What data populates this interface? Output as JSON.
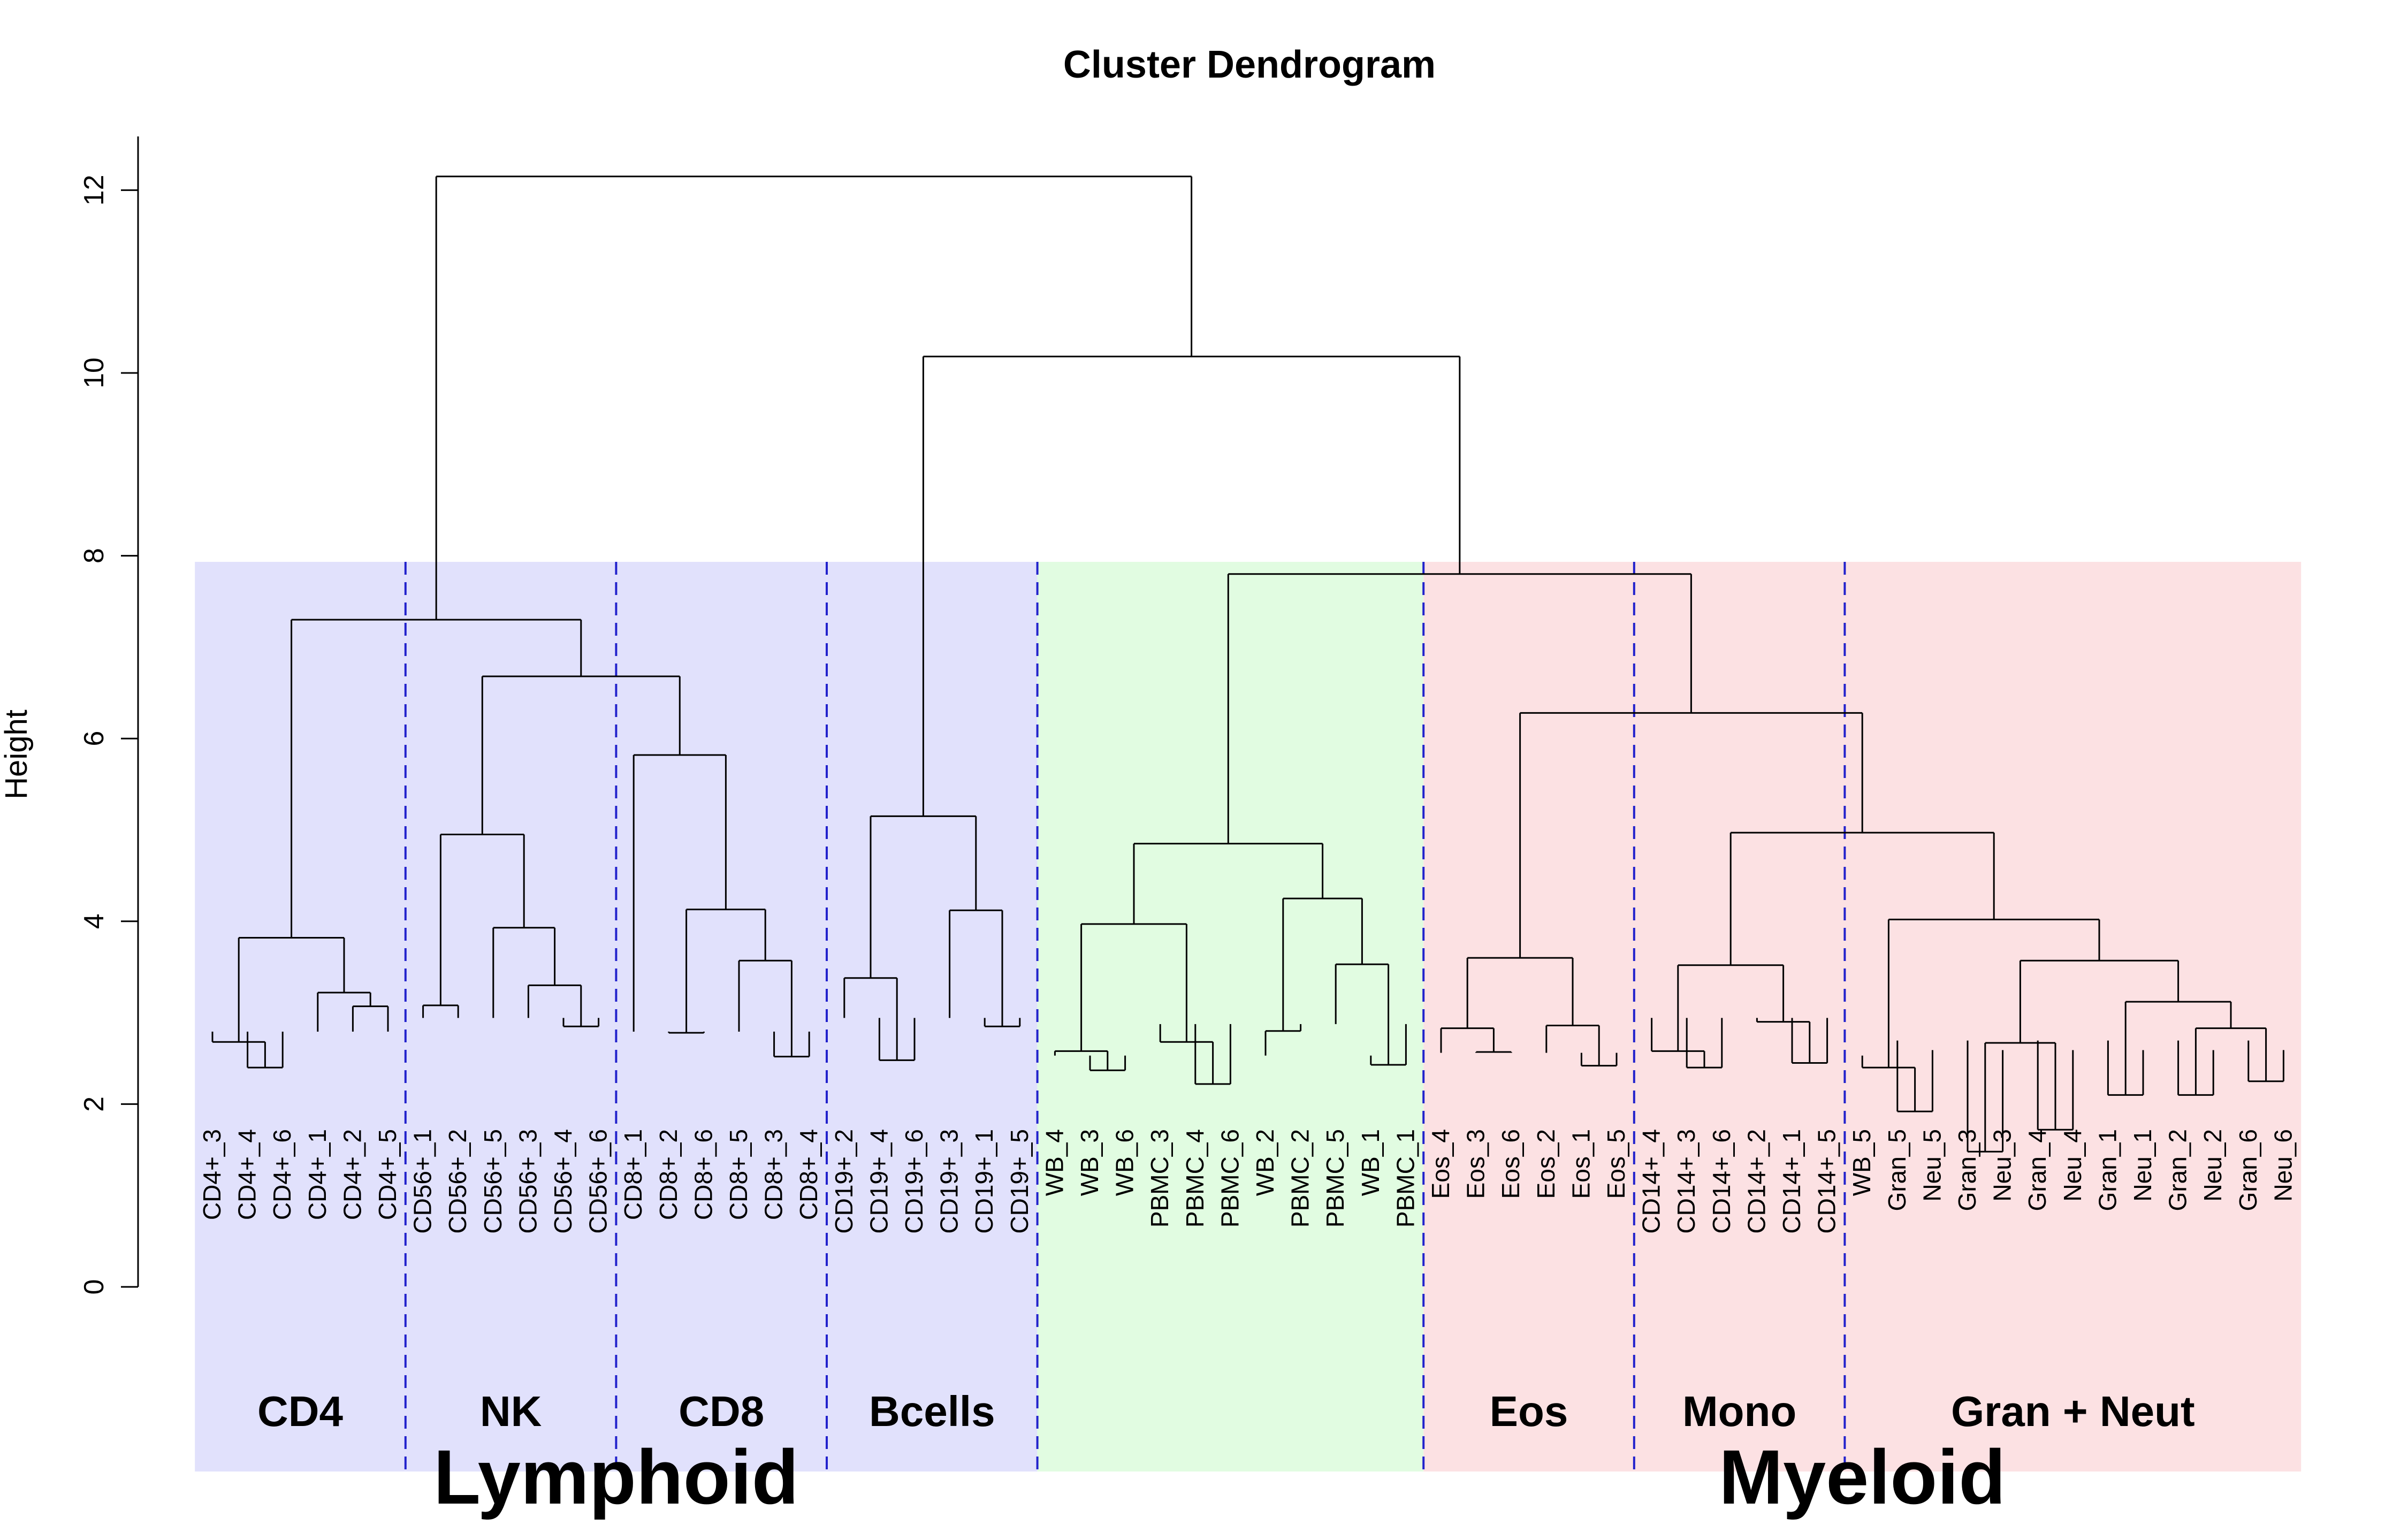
{
  "chart_data": {
    "type": "dendrogram",
    "title": "Cluster Dendrogram",
    "ylabel": "Height",
    "ylim": [
      0,
      12
    ],
    "yticks": [
      "0",
      "2",
      "4",
      "6",
      "8",
      "10",
      "12"
    ],
    "leaves": [
      "CD4+_3",
      "CD4+_4",
      "CD4+_6",
      "CD4+_1",
      "CD4+_2",
      "CD4+_5",
      "CD56+_1",
      "CD56+_2",
      "CD56+_5",
      "CD56+_3",
      "CD56+_4",
      "CD56+_6",
      "CD8+_1",
      "CD8+_2",
      "CD8+_6",
      "CD8+_5",
      "CD8+_3",
      "CD8+_4",
      "CD19+_2",
      "CD19+_4",
      "CD19+_6",
      "CD19+_3",
      "CD19+_1",
      "CD19+_5",
      "WB_4",
      "WB_3",
      "WB_6",
      "PBMC_3",
      "PBMC_4",
      "PBMC_6",
      "WB_2",
      "PBMC_2",
      "PBMC_5",
      "WB_1",
      "PBMC_1",
      "Eos_4",
      "Eos_3",
      "Eos_6",
      "Eos_2",
      "Eos_1",
      "Eos_5",
      "CD14+_4",
      "CD14+_3",
      "CD14+_6",
      "CD14+_2",
      "CD14+_1",
      "CD14+_5",
      "WB_5",
      "Gran_5",
      "Neu_5",
      "Gran_3",
      "Neu_3",
      "Gran_4",
      "Neu_4",
      "Gran_1",
      "Neu_1",
      "Gran_2",
      "Neu_2",
      "Gran_6",
      "Neu_6"
    ],
    "merges": [
      {
        "left": "CD4+_4",
        "right": "CD4+_6",
        "height": 2.4
      },
      {
        "left": "CD4+_3",
        "right": "m1",
        "height": 2.68
      },
      {
        "left": "CD4+_2",
        "right": "CD4+_5",
        "height": 3.07
      },
      {
        "left": "CD4+_1",
        "right": "m3",
        "height": 3.22
      },
      {
        "left": "m2",
        "right": "m4",
        "height": 3.82
      },
      {
        "left": "CD56+_1",
        "right": "CD56+_2",
        "height": 3.08
      },
      {
        "left": "CD56+_4",
        "right": "CD56+_6",
        "height": 2.85
      },
      {
        "left": "CD56+_3",
        "right": "m7",
        "height": 3.3
      },
      {
        "left": "CD56+_5",
        "right": "m8",
        "height": 3.93
      },
      {
        "left": "m6",
        "right": "m9",
        "height": 4.95
      },
      {
        "left": "CD8+_2",
        "right": "CD8+_6",
        "height": 2.78
      },
      {
        "left": "CD8+_3",
        "right": "CD8+_4",
        "height": 2.52
      },
      {
        "left": "CD8+_5",
        "right": "m12",
        "height": 3.57
      },
      {
        "left": "m11",
        "right": "m13",
        "height": 4.13
      },
      {
        "left": "CD8+_1",
        "right": "m14",
        "height": 5.82
      },
      {
        "left": "m10",
        "right": "m15",
        "height": 6.68
      },
      {
        "left": "m5",
        "right": "m16",
        "height": 7.3
      },
      {
        "left": "CD19+_4",
        "right": "CD19+_6",
        "height": 2.48
      },
      {
        "left": "CD19+_2",
        "right": "m18",
        "height": 3.38
      },
      {
        "left": "CD19+_1",
        "right": "CD19+_5",
        "height": 2.85
      },
      {
        "left": "CD19+_3",
        "right": "m20",
        "height": 4.12
      },
      {
        "left": "m19",
        "right": "m21",
        "height": 5.15
      },
      {
        "left": "WB_3",
        "right": "WB_6",
        "height": 2.37
      },
      {
        "left": "WB_4",
        "right": "m23",
        "height": 2.58
      },
      {
        "left": "PBMC_4",
        "right": "PBMC_6",
        "height": 2.22
      },
      {
        "left": "PBMC_3",
        "right": "m25",
        "height": 2.68
      },
      {
        "left": "m24",
        "right": "m26",
        "height": 3.97
      },
      {
        "left": "WB_2",
        "right": "PBMC_2",
        "height": 2.8
      },
      {
        "left": "WB_1",
        "right": "PBMC_1",
        "height": 2.43
      },
      {
        "left": "PBMC_5",
        "right": "m29",
        "height": 3.53
      },
      {
        "left": "m28",
        "right": "m30",
        "height": 4.25
      },
      {
        "left": "m27",
        "right": "m31",
        "height": 4.85
      },
      {
        "left": "Eos_3",
        "right": "Eos_6",
        "height": 2.57
      },
      {
        "left": "Eos_4",
        "right": "m33",
        "height": 2.83
      },
      {
        "left": "Eos_1",
        "right": "Eos_5",
        "height": 2.42
      },
      {
        "left": "Eos_2",
        "right": "m35",
        "height": 2.86
      },
      {
        "left": "m34",
        "right": "m36",
        "height": 3.6
      },
      {
        "left": "CD14+_3",
        "right": "CD14+_6",
        "height": 2.4
      },
      {
        "left": "CD14+_4",
        "right": "m38",
        "height": 2.58
      },
      {
        "left": "CD14+_1",
        "right": "CD14+_5",
        "height": 2.45
      },
      {
        "left": "CD14+_2",
        "right": "m40",
        "height": 2.9
      },
      {
        "left": "m39",
        "right": "m41",
        "height": 3.52
      },
      {
        "left": "Gran_5",
        "right": "Neu_5",
        "height": 1.92
      },
      {
        "left": "WB_5",
        "right": "m43",
        "height": 2.4
      },
      {
        "left": "Gran_3",
        "right": "Neu_3",
        "height": 1.48
      },
      {
        "left": "Gran_4",
        "right": "Neu_4",
        "height": 1.72
      },
      {
        "left": "m45",
        "right": "m46",
        "height": 2.67
      },
      {
        "left": "Gran_1",
        "right": "Neu_1",
        "height": 2.1
      },
      {
        "left": "Gran_2",
        "right": "Neu_2",
        "height": 2.1
      },
      {
        "left": "Gran_6",
        "right": "Neu_6",
        "height": 2.25
      },
      {
        "left": "m49",
        "right": "m50",
        "height": 2.83
      },
      {
        "left": "m48",
        "right": "m51",
        "height": 3.12
      },
      {
        "left": "m47",
        "right": "m52",
        "height": 3.57
      },
      {
        "left": "m44",
        "right": "m53",
        "height": 4.02
      },
      {
        "left": "m42",
        "right": "m54",
        "height": 4.97
      },
      {
        "left": "m37",
        "right": "m55",
        "height": 6.28
      },
      {
        "left": "m32",
        "right": "m56",
        "height": 7.8
      },
      {
        "left": "m22",
        "right": "m57",
        "height": 10.18
      },
      {
        "left": "m17",
        "right": "m58",
        "height": 12.15
      }
    ],
    "regions": [
      {
        "start": "CD4+_3",
        "end": "CD19+_5",
        "color": "#e1e1fc"
      },
      {
        "start": "WB_4",
        "end": "PBMC_1",
        "color": "#e1fce1"
      },
      {
        "start": "Eos_4",
        "end": "Neu_6",
        "color": "#fce1e3"
      }
    ],
    "cluster_labels": [
      {
        "label": "CD4",
        "start": "CD4+_3",
        "end": "CD4+_5"
      },
      {
        "label": "NK",
        "start": "CD56+_1",
        "end": "CD56+_6"
      },
      {
        "label": "CD8",
        "start": "CD8+_1",
        "end": "CD8+_4"
      },
      {
        "label": "Bcells",
        "start": "CD19+_2",
        "end": "CD19+_5"
      },
      {
        "label": "Eos",
        "start": "Eos_4",
        "end": "Eos_5"
      },
      {
        "label": "Mono",
        "start": "CD14+_4",
        "end": "CD14+_5"
      },
      {
        "label": "Gran + Neut",
        "start": "WB_5",
        "end": "Neu_6"
      }
    ],
    "divider_color": "#2222cc",
    "lineages": [
      {
        "label": "Lymphoid",
        "start": "CD4+_3",
        "end": "CD19+_5"
      },
      {
        "label": "Myeloid",
        "start": "Eos_4",
        "end": "Neu_6"
      }
    ]
  }
}
